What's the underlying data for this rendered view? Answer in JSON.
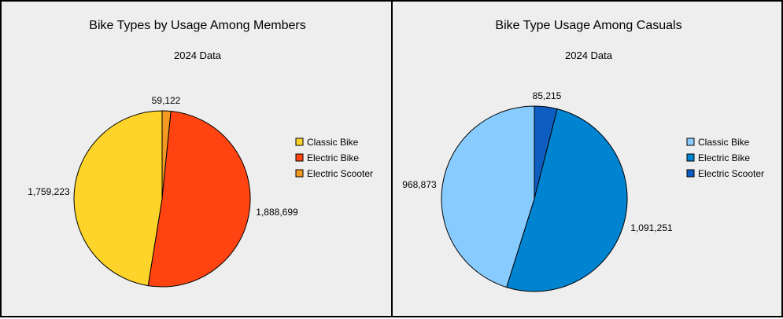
{
  "chart_data": [
    {
      "type": "pie",
      "title": "Bike Types by Usage Among Members",
      "subtitle": "2024 Data",
      "categories": [
        "Classic Bike",
        "Electric Bike",
        "Electric Scooter"
      ],
      "values": [
        1759223,
        1888699,
        59122
      ],
      "data_labels": [
        "1,759,223",
        "1,888,699",
        "59,122"
      ],
      "colors": [
        "#FFD42A",
        "#FF4411",
        "#F29A22"
      ],
      "legend_position": "right"
    },
    {
      "type": "pie",
      "title": "Bike Type Usage Among Casuals",
      "subtitle": "2024 Data",
      "categories": [
        "Classic Bike",
        "Electric Bike",
        "Electric Scooter"
      ],
      "values": [
        968873,
        1091251,
        85215
      ],
      "data_labels": [
        "968,873",
        "1,091,251",
        "85,215"
      ],
      "colors": [
        "#88CCFF",
        "#0083D1",
        "#0D5EC0"
      ],
      "legend_position": "right"
    }
  ]
}
